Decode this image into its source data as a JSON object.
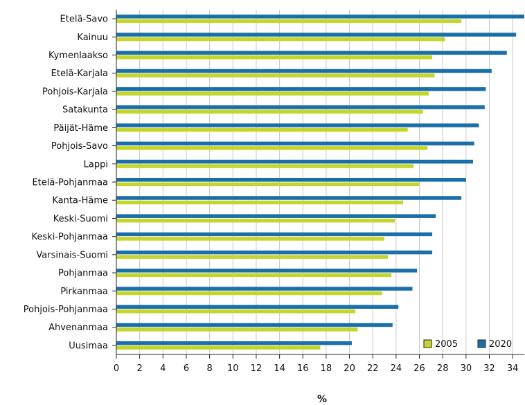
{
  "chart_data": {
    "type": "bar",
    "orientation": "horizontal",
    "title": "",
    "xlabel": "%",
    "ylabel": "",
    "xlim": [
      0,
      35
    ],
    "x_ticks": [
      0,
      2,
      4,
      6,
      8,
      10,
      12,
      14,
      16,
      18,
      20,
      22,
      24,
      26,
      28,
      30,
      32,
      34
    ],
    "grid": "vertical",
    "legend_position": "bottom-right",
    "categories": [
      "Etelä-Savo",
      "Kainuu",
      "Kymenlaakso",
      "Etelä-Karjala",
      "Pohjois-Karjala",
      "Satakunta",
      "Päijät-Häme",
      "Pohjois-Savo",
      "Lappi",
      "Etelä-Pohjanmaa",
      "Kanta-Häme",
      "Keski-Suomi",
      "Keski-Pohjanmaa",
      "Varsinais-Suomi",
      "Pohjanmaa",
      "Pirkanmaa",
      "Pohjois-Pohjanmaa",
      "Ahvenanmaa",
      "Uusimaa"
    ],
    "series": [
      {
        "name": "2020",
        "color": "#1a6fa8",
        "values": [
          35.0,
          34.3,
          33.5,
          32.2,
          31.7,
          31.6,
          31.1,
          30.7,
          30.6,
          30.0,
          29.6,
          27.4,
          27.1,
          27.1,
          25.8,
          25.4,
          24.2,
          23.7,
          20.2
        ]
      },
      {
        "name": "2005",
        "color": "#c4d62c",
        "values": [
          29.6,
          28.2,
          27.1,
          27.3,
          26.8,
          26.3,
          25.0,
          26.7,
          25.5,
          26.0,
          24.6,
          23.9,
          23.0,
          23.3,
          23.6,
          22.8,
          20.5,
          20.7,
          17.5
        ]
      }
    ],
    "legend_order": [
      "2005",
      "2020"
    ]
  }
}
